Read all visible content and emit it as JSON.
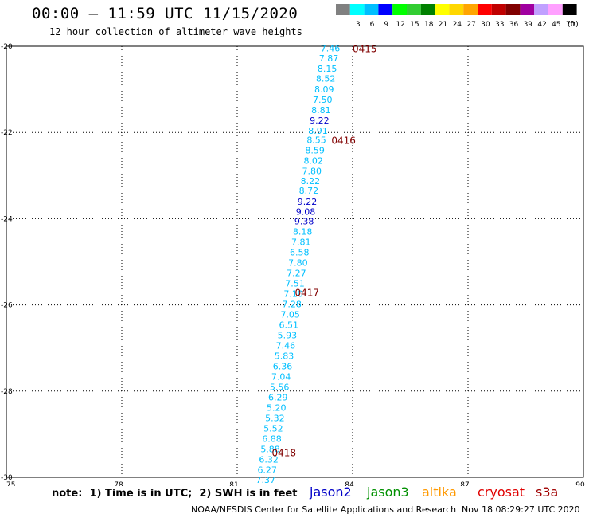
{
  "header": {
    "title": "00:00 – 11:59 UTC 11/15/2020",
    "subtitle": "12 hour collection of altimeter wave heights"
  },
  "legend": {
    "unit": "(ft)",
    "bins": [
      {
        "label": "",
        "color": "#808080"
      },
      {
        "label": "3",
        "color": "#00ffff"
      },
      {
        "label": "6",
        "color": "#00bfff"
      },
      {
        "label": "9",
        "color": "#0000ff"
      },
      {
        "label": "12",
        "color": "#00ff00"
      },
      {
        "label": "15",
        "color": "#32cd32"
      },
      {
        "label": "18",
        "color": "#008000"
      },
      {
        "label": "21",
        "color": "#ffff00"
      },
      {
        "label": "24",
        "color": "#ffd700"
      },
      {
        "label": "27",
        "color": "#ffa500"
      },
      {
        "label": "30",
        "color": "#ff0000"
      },
      {
        "label": "33",
        "color": "#c00000"
      },
      {
        "label": "36",
        "color": "#800000"
      },
      {
        "label": "39",
        "color": "#a000a0"
      },
      {
        "label": "42",
        "color": "#c0a0ff"
      },
      {
        "label": "45",
        "color": "#ffa0ff"
      },
      {
        "label": "70",
        "color": "#000000"
      }
    ]
  },
  "chart_data": {
    "type": "scatter",
    "title": "00:00 – 11:59 UTC 11/15/2020",
    "subtitle": "12 hour collection of altimeter wave heights",
    "xlim": [
      75,
      90
    ],
    "ylim": [
      -30,
      -20
    ],
    "xticks": [
      "75",
      "78",
      "81",
      "84",
      "87",
      "90"
    ],
    "yticks": [
      "-20",
      "-22",
      "-24",
      "-26",
      "-28",
      "-30"
    ],
    "xtick_values": [
      75,
      78,
      81,
      84,
      87,
      90
    ],
    "ytick_values": [
      -20,
      -22,
      -24,
      -26,
      -28,
      -30
    ],
    "grid": true,
    "colors": {
      "cyan": "#00bfff",
      "blue": "#0000c8",
      "time_label": "#800000"
    },
    "points": [
      {
        "lon": 83.42,
        "lat": -20.05,
        "label": "7.46",
        "color": "cyan"
      },
      {
        "lon": 83.38,
        "lat": -20.28,
        "label": "7.87",
        "color": "cyan"
      },
      {
        "lon": 83.34,
        "lat": -20.52,
        "label": "8.15",
        "color": "cyan"
      },
      {
        "lon": 83.3,
        "lat": -20.75,
        "label": "8.52",
        "color": "cyan"
      },
      {
        "lon": 83.26,
        "lat": -21.0,
        "label": "8.09",
        "color": "cyan"
      },
      {
        "lon": 83.22,
        "lat": -21.24,
        "label": "7.50",
        "color": "cyan"
      },
      {
        "lon": 83.18,
        "lat": -21.48,
        "label": "8.81",
        "color": "cyan"
      },
      {
        "lon": 83.14,
        "lat": -21.72,
        "label": "9.22",
        "color": "blue"
      },
      {
        "lon": 83.1,
        "lat": -21.96,
        "label": "8.91",
        "color": "cyan"
      },
      {
        "lon": 83.06,
        "lat": -22.17,
        "label": "8.55",
        "color": "cyan"
      },
      {
        "lon": 83.02,
        "lat": -22.41,
        "label": "8.59",
        "color": "cyan"
      },
      {
        "lon": 82.98,
        "lat": -22.65,
        "label": "8.02",
        "color": "cyan"
      },
      {
        "lon": 82.94,
        "lat": -22.89,
        "label": "7.80",
        "color": "cyan"
      },
      {
        "lon": 82.9,
        "lat": -23.12,
        "label": "8.22",
        "color": "cyan"
      },
      {
        "lon": 82.86,
        "lat": -23.35,
        "label": "8.72",
        "color": "cyan"
      },
      {
        "lon": 82.82,
        "lat": -23.6,
        "label": "9.22",
        "color": "blue"
      },
      {
        "lon": 82.78,
        "lat": -23.84,
        "label": "9.08",
        "color": "blue"
      },
      {
        "lon": 82.74,
        "lat": -24.06,
        "label": "9.38",
        "color": "blue"
      },
      {
        "lon": 82.7,
        "lat": -24.3,
        "label": "8.18",
        "color": "cyan"
      },
      {
        "lon": 82.66,
        "lat": -24.54,
        "label": "7.81",
        "color": "cyan"
      },
      {
        "lon": 82.62,
        "lat": -24.78,
        "label": "6.58",
        "color": "cyan"
      },
      {
        "lon": 82.58,
        "lat": -25.02,
        "label": "7.80",
        "color": "cyan"
      },
      {
        "lon": 82.54,
        "lat": -25.26,
        "label": "7.27",
        "color": "cyan"
      },
      {
        "lon": 82.5,
        "lat": -25.5,
        "label": "7.51",
        "color": "cyan"
      },
      {
        "lon": 82.46,
        "lat": -25.74,
        "label": "7.10",
        "color": "cyan"
      },
      {
        "lon": 82.42,
        "lat": -25.98,
        "label": "7.28",
        "color": "cyan"
      },
      {
        "lon": 82.38,
        "lat": -26.22,
        "label": "7.05",
        "color": "cyan"
      },
      {
        "lon": 82.34,
        "lat": -26.46,
        "label": "6.51",
        "color": "cyan"
      },
      {
        "lon": 82.3,
        "lat": -26.7,
        "label": "5.93",
        "color": "cyan"
      },
      {
        "lon": 82.26,
        "lat": -26.94,
        "label": "7.46",
        "color": "cyan"
      },
      {
        "lon": 82.22,
        "lat": -27.18,
        "label": "5.83",
        "color": "cyan"
      },
      {
        "lon": 82.18,
        "lat": -27.42,
        "label": "6.36",
        "color": "cyan"
      },
      {
        "lon": 82.14,
        "lat": -27.66,
        "label": "7.04",
        "color": "cyan"
      },
      {
        "lon": 82.1,
        "lat": -27.9,
        "label": "5.56",
        "color": "cyan"
      },
      {
        "lon": 82.06,
        "lat": -28.14,
        "label": "6.29",
        "color": "cyan"
      },
      {
        "lon": 82.02,
        "lat": -28.38,
        "label": "5.20",
        "color": "cyan"
      },
      {
        "lon": 81.98,
        "lat": -28.62,
        "label": "5.32",
        "color": "cyan"
      },
      {
        "lon": 81.94,
        "lat": -28.86,
        "label": "5.52",
        "color": "cyan"
      },
      {
        "lon": 81.9,
        "lat": -29.1,
        "label": "6.88",
        "color": "cyan"
      },
      {
        "lon": 81.86,
        "lat": -29.34,
        "label": "5.88",
        "color": "cyan"
      },
      {
        "lon": 81.82,
        "lat": -29.58,
        "label": "6.32",
        "color": "cyan"
      },
      {
        "lon": 81.78,
        "lat": -29.82,
        "label": "6.27",
        "color": "cyan"
      },
      {
        "lon": 81.74,
        "lat": -30.06,
        "label": "7.37",
        "color": "cyan"
      }
    ],
    "time_labels": [
      {
        "lon": 84.0,
        "lat": -20.05,
        "label": "0415"
      },
      {
        "lon": 83.45,
        "lat": -22.17,
        "label": "0416"
      },
      {
        "lon": 82.5,
        "lat": -25.7,
        "label": "0417"
      },
      {
        "lon": 81.9,
        "lat": -29.42,
        "label": "0418"
      }
    ]
  },
  "footer": {
    "note": "note:  1) Time is in UTC;  2) SWH is in feet",
    "credit": "NOAA/NESDIS Center for Satellite Applications and Research",
    "timestamp": "Nov 18 08:29:27 UTC 2020",
    "satellites": [
      {
        "name": "jason2",
        "color": "#0000c8"
      },
      {
        "name": "jason3",
        "color": "#009000"
      },
      {
        "name": "altika",
        "color": "#ff9900"
      },
      {
        "name": "cryosat",
        "color": "#e00000"
      },
      {
        "name": "s3a",
        "color": "#a00000"
      }
    ]
  }
}
